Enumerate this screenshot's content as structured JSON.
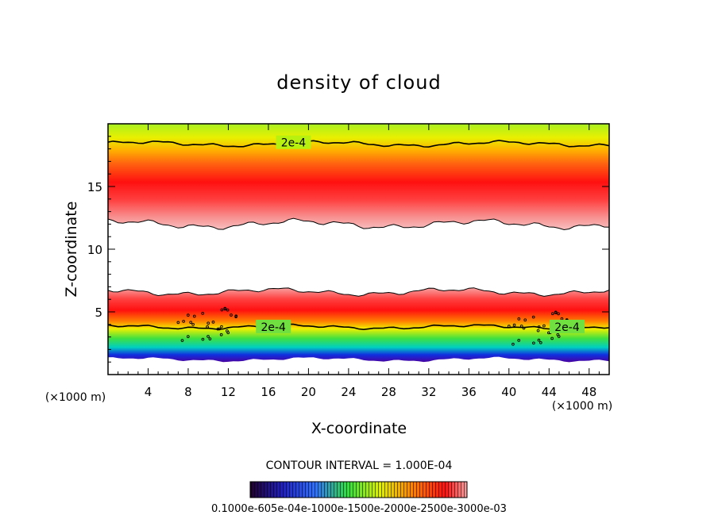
{
  "chart_data": {
    "type": "heatmap",
    "title": "density of cloud",
    "xlabel": "X-coordinate",
    "ylabel": "Z-coordinate",
    "x_unit_left": "(×1000 m)",
    "x_unit_right": "(×1000 m)",
    "xlim": [
      0,
      50
    ],
    "ylim": [
      0,
      20
    ],
    "xticks": [
      4,
      8,
      12,
      16,
      20,
      24,
      28,
      32,
      36,
      40,
      44,
      48
    ],
    "yticks": [
      5,
      10,
      15
    ],
    "contour_interval_text": "CONTOUR INTERVAL = 1.000E-04",
    "contour_labels": [
      {
        "text": "2e-4",
        "x": 18.5,
        "z": 18.5
      },
      {
        "text": "2e-4",
        "x": 16.5,
        "z": 3.8
      },
      {
        "text": "2e-4",
        "x": 45.8,
        "z": 3.8
      }
    ],
    "layers": [
      {
        "name": "upper band",
        "z_range": [
          12,
          19.8
        ],
        "peak_z": 14.6
      },
      {
        "name": "lower band",
        "z_range": [
          1.0,
          6.8
        ],
        "peak_z": 5.2
      }
    ],
    "colorbar_labels": "0.1000e-605e-04e-1000e-1500e-2000e-2500e-3000e-03",
    "colorbar_note": "overlapping tick labels as printed"
  },
  "colors": {
    "low": "#3a0070",
    "mid_blue": "#1030e0",
    "green": "#40e040",
    "yellow": "#f0f000",
    "orange": "#ff8000",
    "red": "#ff1010",
    "pink": "#f4b0b0"
  }
}
